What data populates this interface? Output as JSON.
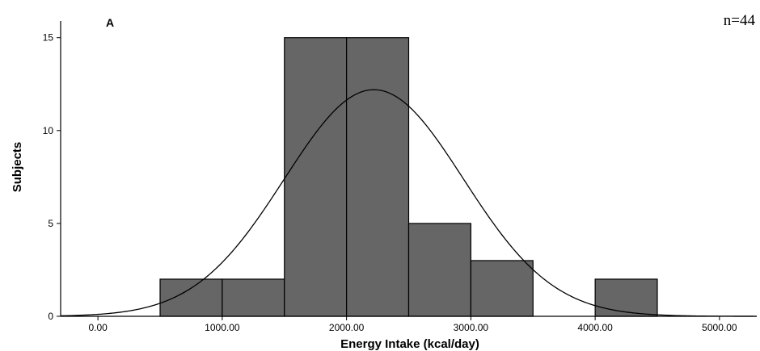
{
  "chart_data": {
    "type": "bar",
    "subtype": "histogram-with-normal-curve",
    "panel_label": "A",
    "annotation": "n=44",
    "xlabel": "Energy Intake (kcal/day)",
    "ylabel": "Subjects",
    "xlim": [
      -300,
      5300
    ],
    "ylim": [
      0,
      15.9
    ],
    "x_ticks": [
      0,
      1000,
      2000,
      3000,
      4000,
      5000
    ],
    "x_tick_labels": [
      "0.00",
      "1000.00",
      "2000.00",
      "3000.00",
      "4000.00",
      "5000.00"
    ],
    "y_ticks": [
      0,
      5,
      10,
      15
    ],
    "y_tick_labels": [
      "0",
      "5",
      "10",
      "15"
    ],
    "bins": [
      {
        "start": 500,
        "end": 1000,
        "count": 2
      },
      {
        "start": 1000,
        "end": 1500,
        "count": 2
      },
      {
        "start": 1500,
        "end": 2000,
        "count": 15
      },
      {
        "start": 2000,
        "end": 2500,
        "count": 15
      },
      {
        "start": 2500,
        "end": 3000,
        "count": 5
      },
      {
        "start": 3000,
        "end": 3500,
        "count": 3
      },
      {
        "start": 4000,
        "end": 4500,
        "count": 2
      }
    ],
    "normal_curve": {
      "mean": 2220,
      "sd": 720,
      "peak": 12.2
    },
    "bar_color": "#666666",
    "bar_edge_color": "#000000",
    "grid": false
  }
}
